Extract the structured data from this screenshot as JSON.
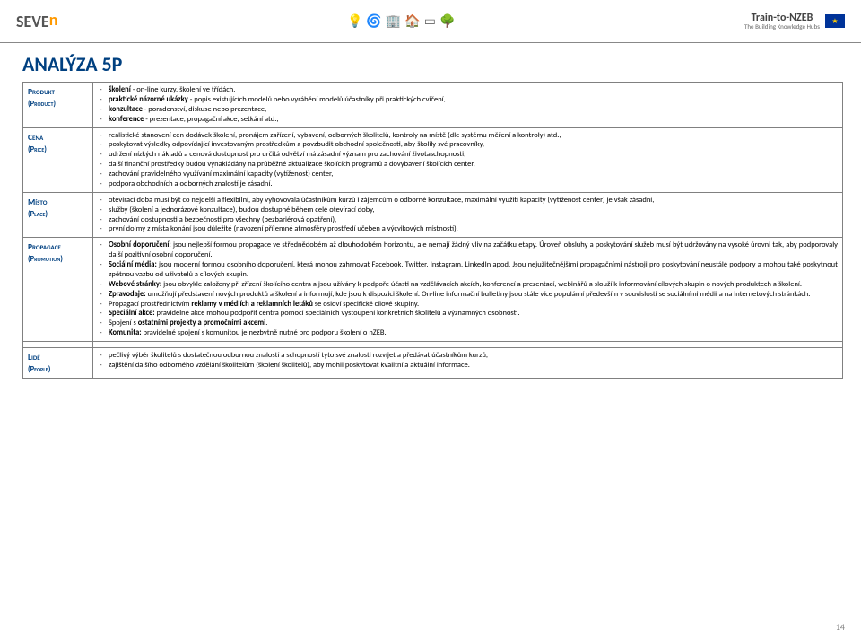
{
  "header": {
    "left_logo_main": "SEVE",
    "left_logo_accent": "n",
    "right_logo_line1": "Train-to-NZEB",
    "right_logo_line2": "The Building Knowledge Hubs",
    "eu_stars": "★"
  },
  "title": "ANALÝZA 5P",
  "rows": {
    "produkt": {
      "label_main": "Produkt",
      "label_sub": "(Product)",
      "items": [
        "školení - on-line kurzy, školení ve třídách,",
        "praktické názorné ukázky - popis existujících modelů nebo vyrábění modelů účastníky při praktických cvičení,",
        "konzultace - poradenství, diskuse nebo prezentace,",
        "konference - prezentace, propagační akce, setkání atd.,"
      ]
    },
    "cena": {
      "label_main": "Cena",
      "label_sub": "(Price)",
      "items": [
        "realistické stanovení cen dodávek školení, pronájem zařízení, vybavení, odborných školitelů, kontroly na místě (dle systému měření a kontroly) atd.,",
        "poskytovat výsledky odpovídající investovaným prostředkům a povzbudit obchodní společnosti, aby školily své pracovníky,",
        "udržení nízkých nákladů a cenová dostupnost pro určitá odvětví má zásadní význam pro zachování životaschopnosti,",
        "další finanční prostředky budou vynakládány na průběžné aktualizace školících programů a dovybavení školících center,",
        "zachování pravidelného využívání maximální kapacity (vytíženost) center,",
        "podpora obchodních a odborných znalostí je zásadní."
      ]
    },
    "misto": {
      "label_main": "Místo",
      "label_sub": "(Place)",
      "items": [
        "otevírací doba musí být co nejdelší a flexibilní, aby vyhovovala účastníkům kurzů i zájemcům o odborné konzultace, maximální využití kapacity (vytíženost center) je však zásadní,",
        "služby (školení a jednorázové konzultace), budou dostupné během celé otevírací doby,",
        "zachování dostupnosti a bezpečnosti pro všechny (bezbariérová opatření),",
        "první dojmy z místa konání jsou důležité (navození příjemné atmosféry prostředí učeben a výcvikových místností)."
      ]
    },
    "propagace": {
      "label_main": "Propagace",
      "label_sub": "(Promotion)",
      "items": [
        {
          "bold": "Osobní doporučení:",
          "rest": " jsou nejlepší formou propagace ve střednědobém až dlouhodobém horizontu, ale nemají žádný vliv na začátku etapy. Úroveň obsluhy a poskytování služeb musí být udržovány na vysoké úrovni tak, aby podporovaly další pozitivní osobní doporučení."
        },
        {
          "bold": "Sociální média:",
          "rest": " jsou moderní formou osobního doporučení, která mohou zahrnovat Facebook, Twitter, Instagram, LinkedIn apod. Jsou nejužitečnějšími propagačními nástroji pro poskytování neustálé podpory a mohou také poskytnout zpětnou vazbu od uživatelů a cílových skupin."
        },
        {
          "bold": "Webové stránky:",
          "rest": " jsou obvykle založeny při zřízení školícího centra a jsou užívány k podpoře účasti na vzdělávacích akcích, konferencí a prezentací, webinářů a slouží k informování cílových skupin o nových produktech a školení."
        },
        {
          "bold": "Zpravodaje:",
          "rest": " umožňují představení nových produktů a školení a informují, kde jsou k dispozici školení. On-line informační bulletiny jsou stále více populární především v souvislosti se sociálními médii a na internetových stránkách."
        },
        {
          "plain": "Propagací prostřednictvím ",
          "bold2": "reklamy v médiích a reklamních letáků",
          "rest2": " se osloví specifické cílové skupiny."
        },
        {
          "bold": "Speciální akce:",
          "rest": " pravidelné akce mohou podpořit centra pomocí speciálních vystoupení konkrétních školitelů a významných osobností."
        },
        {
          "plain": "Spojení s ",
          "bold2": "ostatními projekty a promočními akcemi",
          "rest2": "."
        },
        {
          "bold": "Komunita:",
          "rest": " pravidelné spojení s komunitou je nezbytně nutné pro podporu školení o nZEB."
        }
      ]
    },
    "lide": {
      "label_main": "Lidé",
      "label_sub": "(People)",
      "items": [
        "pečlivý výběr školitelů s dostatečnou odbornou znalostí a schopností tyto své znalosti rozvíjet a předávat účastníkům kurzů,",
        "zajištění dalšího odborného vzdělání školitelům (školení školitelů), aby mohli poskytovat kvalitní a aktuální informace."
      ]
    }
  },
  "page_number": "14"
}
